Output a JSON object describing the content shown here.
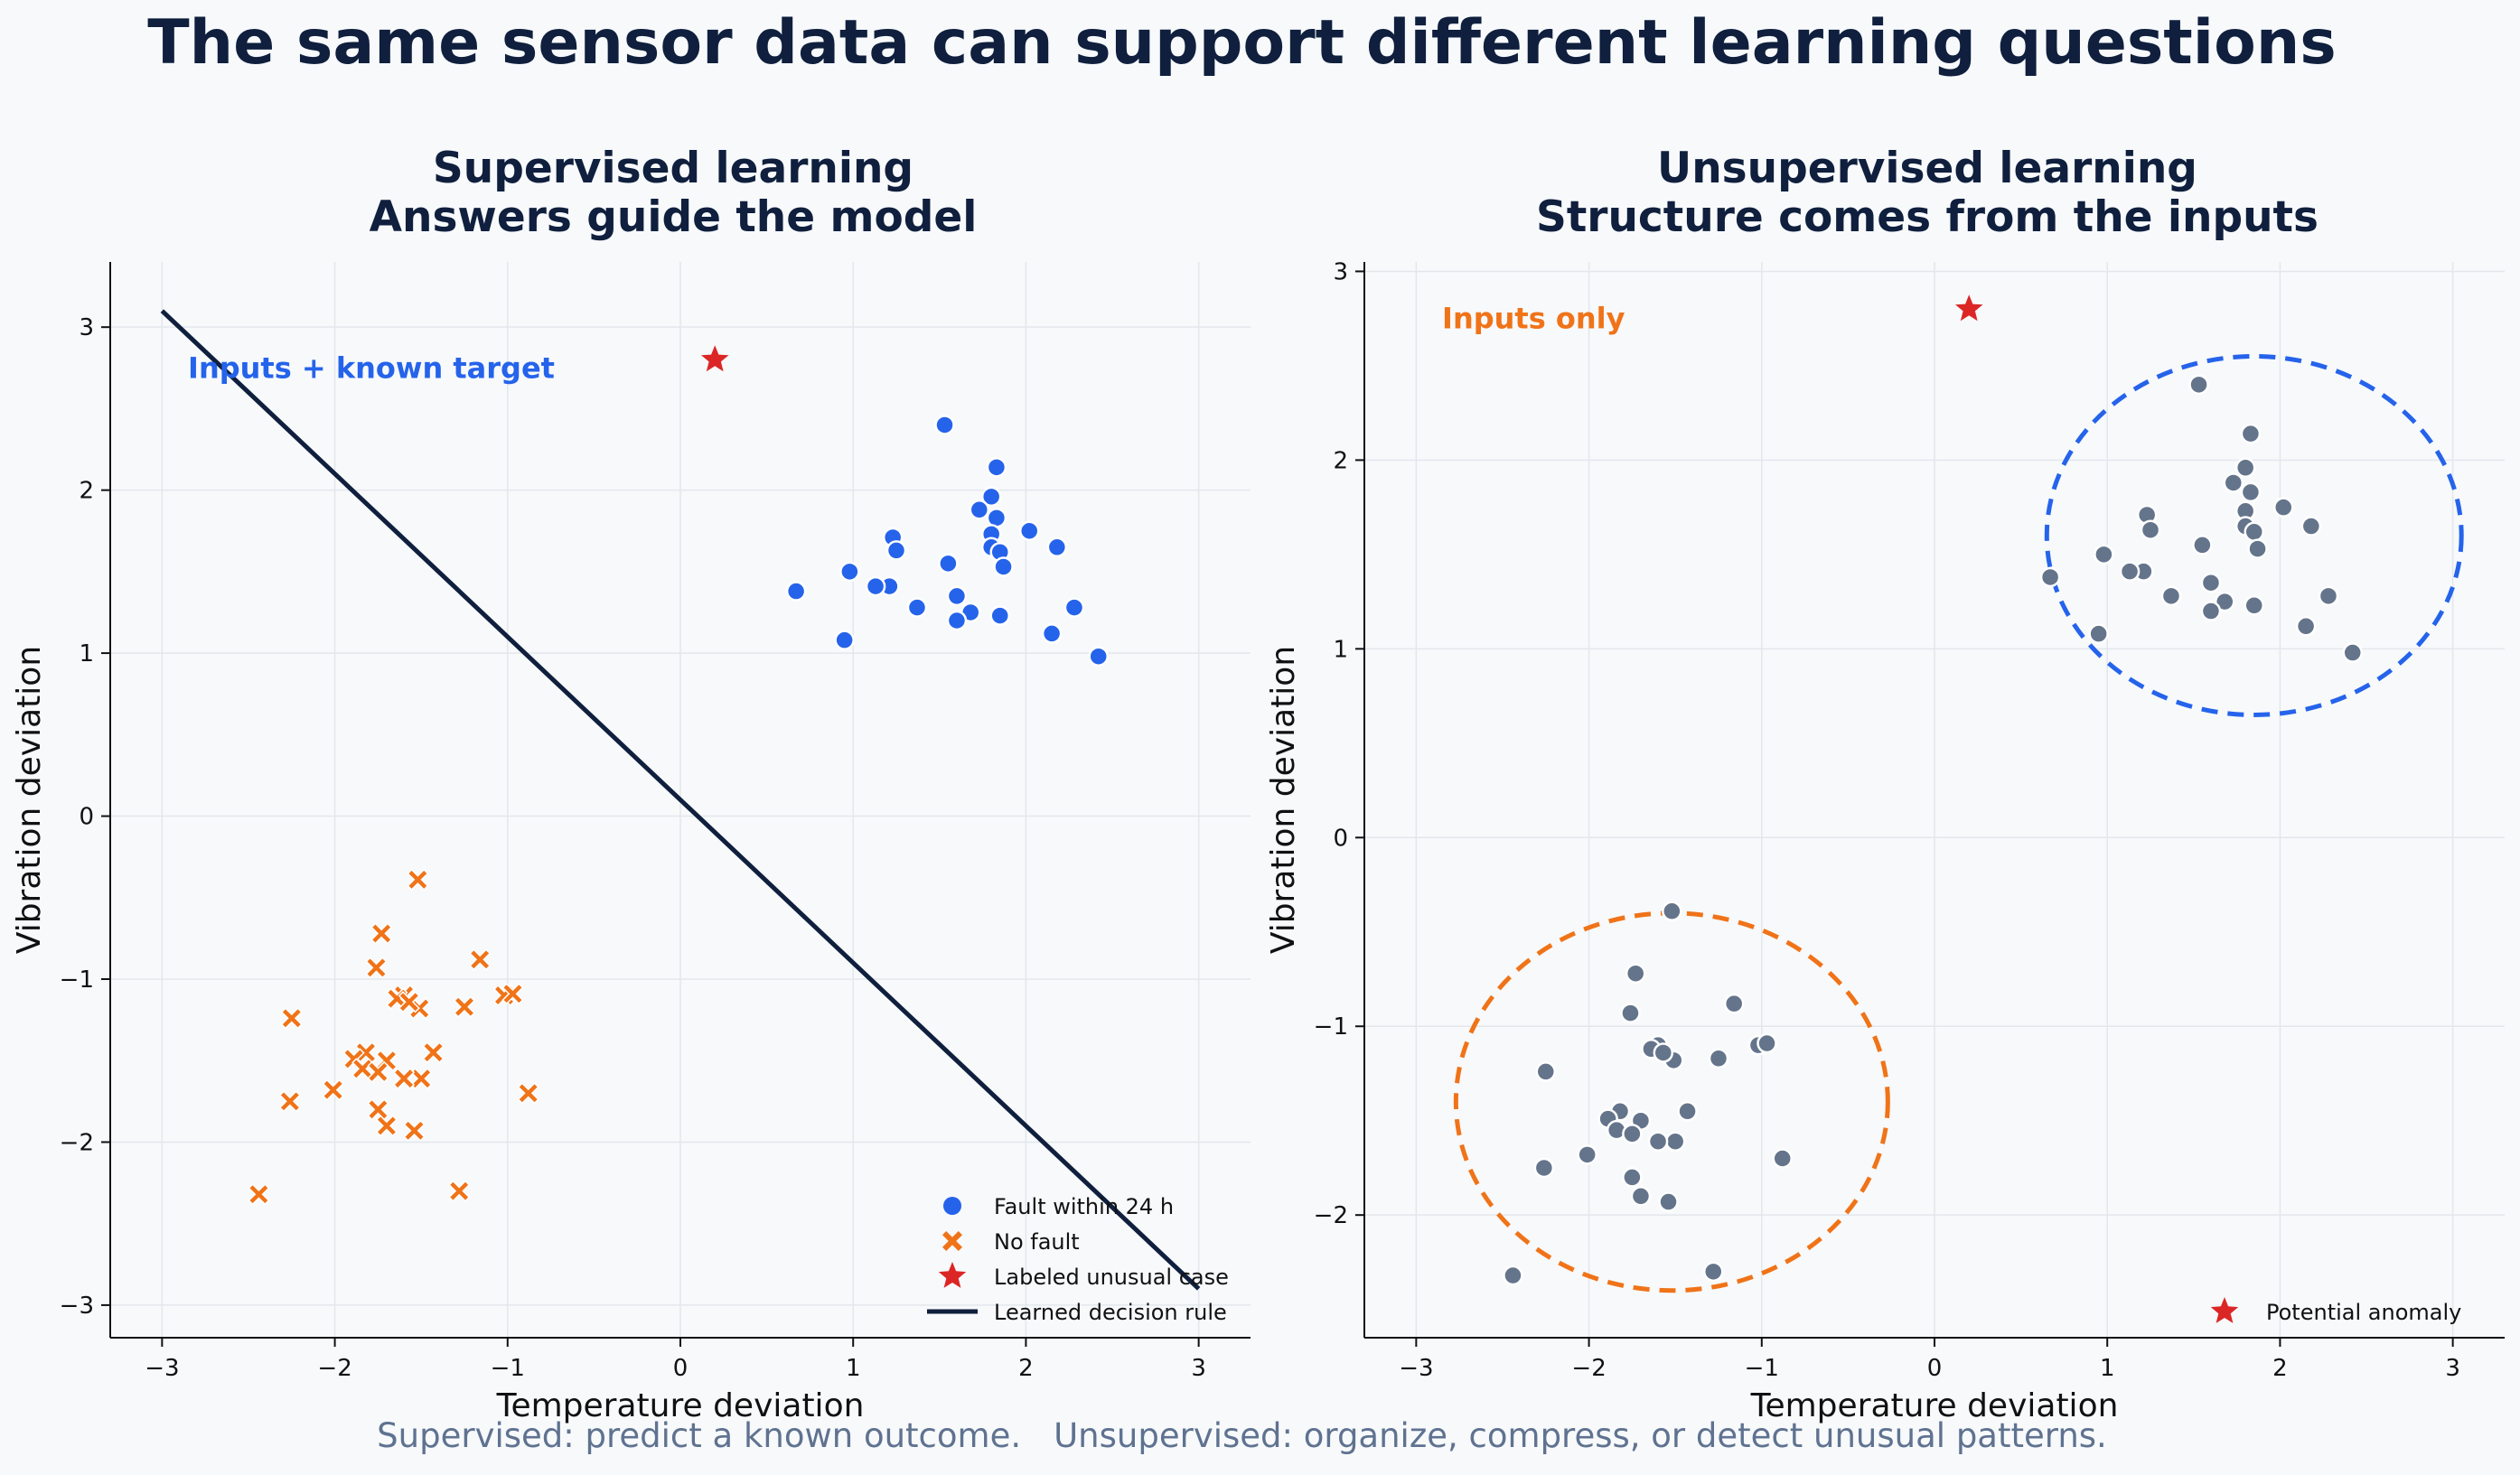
{
  "title": "The same sensor data can support different learning questions",
  "footer": {
    "supervised": "Supervised: predict a known outcome.",
    "unsupervised": "Unsupervised: organize, compress, or detect unusual patterns."
  },
  "colors": {
    "fault": "#2563eb",
    "no_fault": "#f07318",
    "anomaly": "#dc2626",
    "rule": "#0f1f3d",
    "unlabeled": "#64748b"
  },
  "chart_data": [
    {
      "type": "scatter",
      "title": "Supervised learning",
      "subtitle": "Answers guide the model",
      "annotation": "Inputs + known target",
      "xlabel": "Temperature deviation",
      "ylabel": "Vibration deviation",
      "xlim": [
        -3.3,
        3.3
      ],
      "ylim": [
        -3.2,
        3.4
      ],
      "xticks": [
        -3,
        -2,
        -1,
        0,
        1,
        2,
        3
      ],
      "yticks": [
        -3,
        -2,
        -1,
        0,
        1,
        2,
        3
      ],
      "grid": true,
      "legend_position": "lower-right",
      "series": [
        {
          "name": "Fault within 24 h",
          "marker": "circle",
          "color": "#2563eb",
          "points": [
            [
              1.53,
              2.4
            ],
            [
              1.83,
              2.14
            ],
            [
              1.8,
              1.96
            ],
            [
              1.73,
              1.88
            ],
            [
              1.83,
              1.83
            ],
            [
              2.02,
              1.75
            ],
            [
              1.8,
              1.73
            ],
            [
              1.23,
              1.71
            ],
            [
              1.25,
              1.63
            ],
            [
              1.8,
              1.65
            ],
            [
              1.85,
              1.62
            ],
            [
              2.18,
              1.65
            ],
            [
              1.55,
              1.55
            ],
            [
              1.87,
              1.53
            ],
            [
              0.98,
              1.5
            ],
            [
              1.21,
              1.41
            ],
            [
              1.13,
              1.41
            ],
            [
              0.67,
              1.38
            ],
            [
              1.6,
              1.35
            ],
            [
              1.37,
              1.28
            ],
            [
              2.28,
              1.28
            ],
            [
              1.68,
              1.25
            ],
            [
              1.6,
              1.2
            ],
            [
              1.85,
              1.23
            ],
            [
              2.15,
              1.12
            ],
            [
              0.95,
              1.08
            ],
            [
              2.42,
              0.98
            ]
          ]
        },
        {
          "name": "No fault",
          "marker": "x",
          "color": "#f07318",
          "points": [
            [
              -1.52,
              -0.39
            ],
            [
              -1.73,
              -0.72
            ],
            [
              -1.76,
              -0.93
            ],
            [
              -1.16,
              -0.88
            ],
            [
              -1.6,
              -1.1
            ],
            [
              -1.02,
              -1.1
            ],
            [
              -0.97,
              -1.09
            ],
            [
              -1.64,
              -1.12
            ],
            [
              -1.51,
              -1.18
            ],
            [
              -1.25,
              -1.17
            ],
            [
              -1.57,
              -1.14
            ],
            [
              -2.25,
              -1.24
            ],
            [
              -1.43,
              -1.45
            ],
            [
              -1.82,
              -1.45
            ],
            [
              -1.89,
              -1.49
            ],
            [
              -1.7,
              -1.5
            ],
            [
              -1.84,
              -1.55
            ],
            [
              -1.75,
              -1.57
            ],
            [
              -1.5,
              -1.61
            ],
            [
              -1.6,
              -1.61
            ],
            [
              -2.01,
              -1.68
            ],
            [
              -0.88,
              -1.7
            ],
            [
              -2.26,
              -1.75
            ],
            [
              -1.75,
              -1.8
            ],
            [
              -1.7,
              -1.9
            ],
            [
              -1.54,
              -1.93
            ],
            [
              -2.44,
              -2.32
            ],
            [
              -1.28,
              -2.3
            ]
          ]
        },
        {
          "name": "Labeled unusual case",
          "marker": "star",
          "color": "#dc2626",
          "points": [
            [
              0.2,
              2.8
            ]
          ]
        },
        {
          "name": "Learned decision rule",
          "marker": "line",
          "color": "#0f1f3d",
          "points": [
            [
              -3.0,
              3.1
            ],
            [
              3.0,
              -2.9
            ]
          ]
        }
      ]
    },
    {
      "type": "scatter",
      "title": "Unsupervised learning",
      "subtitle": "Structure comes from the inputs",
      "annotation": "Inputs only",
      "xlabel": "Temperature deviation",
      "ylabel": "Vibration deviation",
      "xlim": [
        -3.3,
        3.3
      ],
      "ylim": [
        -2.65,
        3.05
      ],
      "xticks": [
        -3,
        -2,
        -1,
        0,
        1,
        2,
        3
      ],
      "yticks": [
        -2,
        -1,
        0,
        1,
        2,
        3
      ],
      "grid": true,
      "legend_position": "lower-right",
      "clusters": [
        {
          "center": [
            1.85,
            1.6
          ],
          "rx": 1.2,
          "ry": 0.95,
          "color": "#2563eb"
        },
        {
          "center": [
            -1.52,
            -1.4
          ],
          "rx": 1.25,
          "ry": 1.0,
          "color": "#f07318"
        }
      ],
      "series": [
        {
          "name": "",
          "marker": "circle",
          "color": "#64748b",
          "points": [
            [
              1.53,
              2.4
            ],
            [
              1.83,
              2.14
            ],
            [
              1.8,
              1.96
            ],
            [
              1.73,
              1.88
            ],
            [
              1.83,
              1.83
            ],
            [
              2.02,
              1.75
            ],
            [
              1.8,
              1.73
            ],
            [
              1.23,
              1.71
            ],
            [
              1.25,
              1.63
            ],
            [
              1.8,
              1.65
            ],
            [
              1.85,
              1.62
            ],
            [
              2.18,
              1.65
            ],
            [
              1.55,
              1.55
            ],
            [
              1.87,
              1.53
            ],
            [
              0.98,
              1.5
            ],
            [
              1.21,
              1.41
            ],
            [
              1.13,
              1.41
            ],
            [
              0.67,
              1.38
            ],
            [
              1.6,
              1.35
            ],
            [
              1.37,
              1.28
            ],
            [
              2.28,
              1.28
            ],
            [
              1.68,
              1.25
            ],
            [
              1.6,
              1.2
            ],
            [
              1.85,
              1.23
            ],
            [
              2.15,
              1.12
            ],
            [
              0.95,
              1.08
            ],
            [
              2.42,
              0.98
            ],
            [
              -1.52,
              -0.39
            ],
            [
              -1.73,
              -0.72
            ],
            [
              -1.76,
              -0.93
            ],
            [
              -1.16,
              -0.88
            ],
            [
              -1.6,
              -1.1
            ],
            [
              -1.02,
              -1.1
            ],
            [
              -0.97,
              -1.09
            ],
            [
              -1.64,
              -1.12
            ],
            [
              -1.51,
              -1.18
            ],
            [
              -1.25,
              -1.17
            ],
            [
              -1.57,
              -1.14
            ],
            [
              -2.25,
              -1.24
            ],
            [
              -1.43,
              -1.45
            ],
            [
              -1.82,
              -1.45
            ],
            [
              -1.89,
              -1.49
            ],
            [
              -1.7,
              -1.5
            ],
            [
              -1.84,
              -1.55
            ],
            [
              -1.75,
              -1.57
            ],
            [
              -1.5,
              -1.61
            ],
            [
              -1.6,
              -1.61
            ],
            [
              -2.01,
              -1.68
            ],
            [
              -0.88,
              -1.7
            ],
            [
              -2.26,
              -1.75
            ],
            [
              -1.75,
              -1.8
            ],
            [
              -1.7,
              -1.9
            ],
            [
              -1.54,
              -1.93
            ],
            [
              -2.44,
              -2.32
            ],
            [
              -1.28,
              -2.3
            ]
          ]
        },
        {
          "name": "Potential anomaly",
          "marker": "star",
          "color": "#dc2626",
          "points": [
            [
              0.2,
              2.8
            ]
          ]
        }
      ]
    }
  ]
}
